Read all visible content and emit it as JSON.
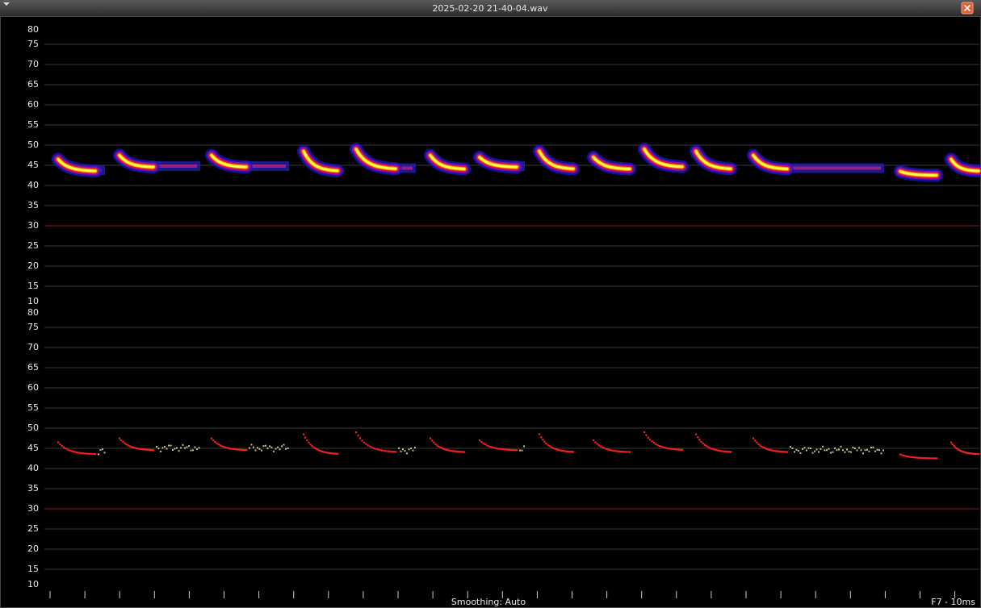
{
  "window": {
    "title": "2025-02-20 21-40-04.wav"
  },
  "panels": [
    {
      "yticks": [
        80,
        75,
        70,
        65,
        60,
        55,
        50,
        45,
        40,
        35,
        30,
        25,
        20,
        15,
        10
      ]
    },
    {
      "yticks": [
        80,
        75,
        70,
        65,
        60,
        55,
        50,
        45,
        40,
        35,
        30,
        25,
        20,
        15,
        10
      ]
    }
  ],
  "status": {
    "smoothing": "Smoothing: Auto",
    "resolution": "F7 - 10ms"
  }
}
